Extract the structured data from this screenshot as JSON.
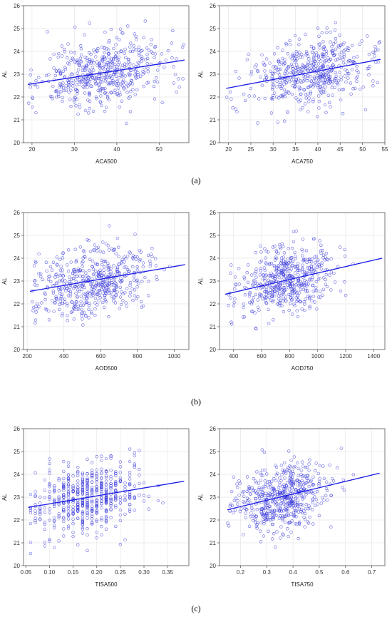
{
  "figure": {
    "row_labels": [
      "(a)",
      "(b)",
      "(c)"
    ]
  },
  "colors": {
    "points": "#3b3bdc",
    "line": "#1a1ae6",
    "frame": "#555555",
    "grid": "#e6e6e6"
  },
  "chart_data": [
    {
      "type": "scatter",
      "xlabel": "ACA500",
      "ylabel": "AL",
      "xlim": [
        18,
        57
      ],
      "ylim": [
        20,
        26
      ],
      "xticks": [
        20,
        30,
        40,
        50
      ],
      "yticks": [
        20,
        21,
        22,
        23,
        24,
        25,
        26
      ],
      "trend": {
        "x": [
          19,
          56
        ],
        "y": [
          22.55,
          23.62
        ]
      },
      "n_points": 520,
      "x_center": 37,
      "x_spread": 7.5,
      "x_min": 19,
      "x_max": 56,
      "y_at_center": 23.05,
      "y_spread": 0.75,
      "seed": 11
    },
    {
      "type": "scatter",
      "xlabel": "ACA750",
      "ylabel": "AL",
      "xlim": [
        18,
        55
      ],
      "ylim": [
        20,
        26
      ],
      "xticks": [
        20,
        25,
        30,
        35,
        40,
        45,
        50,
        55
      ],
      "yticks": [
        20,
        21,
        22,
        23,
        24,
        25,
        26
      ],
      "trend": {
        "x": [
          19.5,
          54
        ],
        "y": [
          22.38,
          23.65
        ]
      },
      "n_points": 520,
      "x_center": 38,
      "x_spread": 6.5,
      "x_min": 19.5,
      "x_max": 54,
      "y_at_center": 23.05,
      "y_spread": 0.75,
      "seed": 23
    },
    {
      "type": "scatter",
      "xlabel": "AOD500",
      "ylabel": "AL",
      "xlim": [
        180,
        1080
      ],
      "ylim": [
        20,
        26
      ],
      "xticks": [
        200,
        400,
        600,
        800,
        1000
      ],
      "yticks": [
        20,
        21,
        22,
        23,
        24,
        25,
        26
      ],
      "trend": {
        "x": [
          215,
          1060
        ],
        "y": [
          22.55,
          23.72
        ]
      },
      "n_points": 520,
      "x_center": 560,
      "x_spread": 150,
      "x_min": 220,
      "x_max": 1060,
      "y_at_center": 23.0,
      "y_spread": 0.75,
      "seed": 37
    },
    {
      "type": "scatter",
      "xlabel": "AOD750",
      "ylabel": "AL",
      "xlim": [
        300,
        1480
      ],
      "ylim": [
        20,
        26
      ],
      "xticks": [
        400,
        600,
        800,
        1000,
        1200,
        1400
      ],
      "yticks": [
        20,
        21,
        22,
        23,
        24,
        25,
        26
      ],
      "trend": {
        "x": [
          340,
          1460
        ],
        "y": [
          22.42,
          24.0
        ]
      },
      "n_points": 520,
      "x_center": 780,
      "x_spread": 170,
      "x_min": 360,
      "x_max": 1450,
      "y_at_center": 23.0,
      "y_spread": 0.75,
      "seed": 53
    },
    {
      "type": "scatter",
      "xlabel": "TISA500",
      "ylabel": "AL",
      "xlim": [
        0.045,
        0.395
      ],
      "ylim": [
        20,
        26
      ],
      "xticks": [
        0.05,
        0.1,
        0.15,
        0.2,
        0.25,
        0.3,
        0.35
      ],
      "yticks": [
        20,
        21,
        22,
        23,
        24,
        25,
        26
      ],
      "tick_decimals": 2,
      "trend": {
        "x": [
          0.055,
          0.385
        ],
        "y": [
          22.55,
          23.7
        ]
      },
      "n_points": 560,
      "x_center": 0.18,
      "x_spread": 0.055,
      "x_min": 0.06,
      "x_max": 0.38,
      "x_quantum": 0.01,
      "y_at_center": 23.0,
      "y_spread": 0.75,
      "seed": 71
    },
    {
      "type": "scatter",
      "xlabel": "TISA750",
      "ylabel": "AL",
      "xlim": [
        0.12,
        0.75
      ],
      "ylim": [
        20,
        26
      ],
      "xticks": [
        0.2,
        0.3,
        0.4,
        0.5,
        0.6,
        0.7
      ],
      "yticks": [
        20,
        21,
        22,
        23,
        24,
        25,
        26
      ],
      "tick_decimals": 1,
      "trend": {
        "x": [
          0.15,
          0.73
        ],
        "y": [
          22.45,
          24.05
        ]
      },
      "n_points": 560,
      "x_center": 0.36,
      "x_spread": 0.085,
      "x_min": 0.15,
      "x_max": 0.72,
      "y_at_center": 23.0,
      "y_spread": 0.75,
      "seed": 89
    }
  ]
}
